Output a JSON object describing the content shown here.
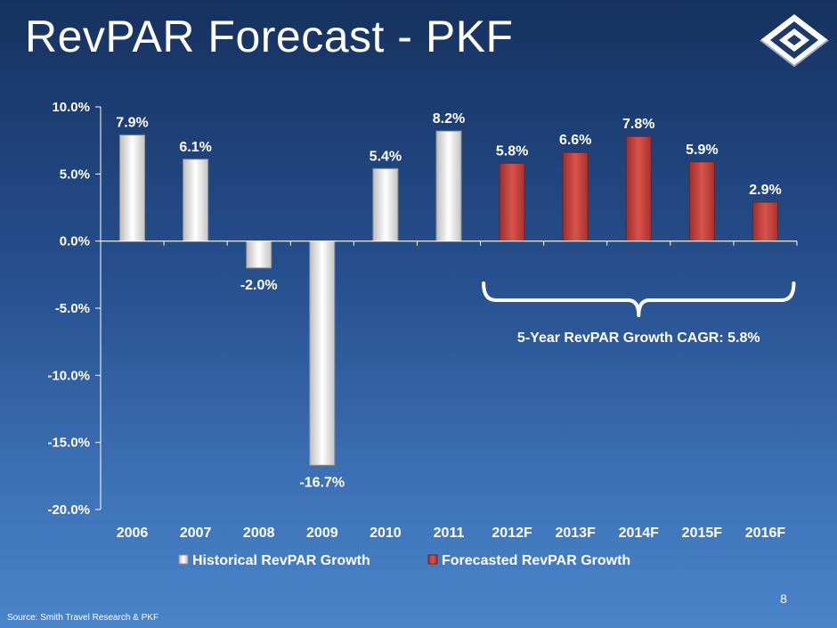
{
  "slide": {
    "title": "RevPAR Forecast - PKF",
    "page_number": "8",
    "source": "Source:  Smith Travel Research & PKF",
    "logo": "diamond-logo-icon"
  },
  "colors": {
    "historical": "#f2f2f2",
    "forecast": "#c9413c",
    "text": "#ffffff",
    "axis": "#ffffff"
  },
  "chart_data": {
    "type": "bar",
    "categories": [
      "2006",
      "2007",
      "2008",
      "2009",
      "2010",
      "2011",
      "2012F",
      "2013F",
      "2014F",
      "2015F",
      "2016F"
    ],
    "series": [
      {
        "name": "Historical RevPAR Growth",
        "values": [
          7.9,
          6.1,
          -2.0,
          -16.7,
          5.4,
          8.2,
          null,
          null,
          null,
          null,
          null
        ]
      },
      {
        "name": "Forecasted RevPAR Growth",
        "values": [
          null,
          null,
          null,
          null,
          null,
          null,
          5.8,
          6.6,
          7.8,
          5.9,
          2.9
        ]
      }
    ],
    "data_labels": [
      "7.9%",
      "6.1%",
      "-2.0%",
      "-16.7%",
      "5.4%",
      "8.2%",
      "5.8%",
      "6.6%",
      "7.8%",
      "5.9%",
      "2.9%"
    ],
    "y_ticks": [
      10,
      5,
      0,
      -5,
      -10,
      -15,
      -20
    ],
    "y_tick_labels": [
      "10.0%",
      "5.0%",
      "0.0%",
      "-5.0%",
      "-10.0%",
      "-15.0%",
      "-20.0%"
    ],
    "ylim": [
      -20,
      10
    ],
    "grid": false,
    "legend_position": "bottom",
    "annotation": {
      "text": "5-Year RevPAR Growth CAGR:  5.8%",
      "spans": [
        "2012F",
        "2016F"
      ]
    },
    "title": "",
    "xlabel": "",
    "ylabel": ""
  }
}
